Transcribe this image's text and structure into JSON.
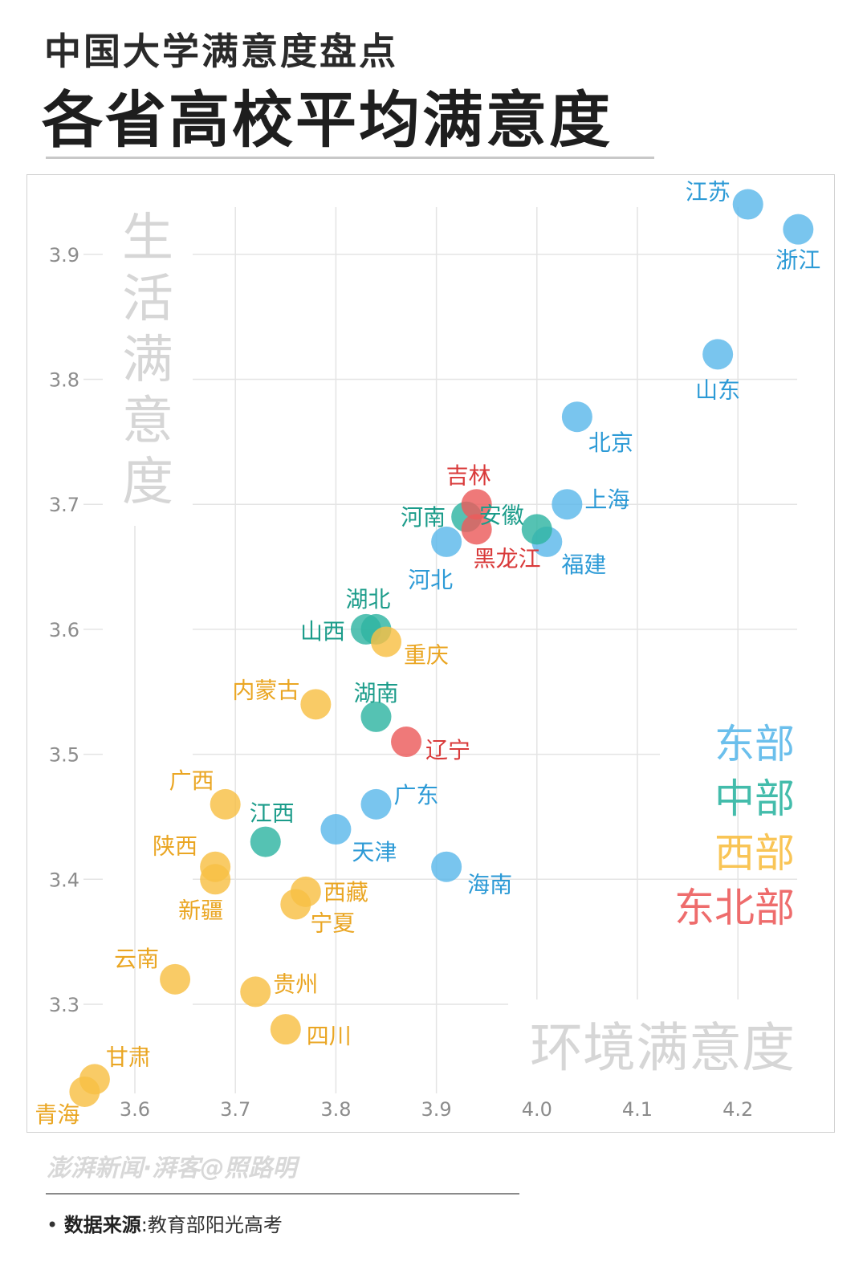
{
  "header": {
    "subtitle": "中国大学满意度盘点",
    "title": "各省高校平均满意度"
  },
  "footer": {
    "brand": "澎湃新闻·湃客@照路明",
    "source_label": "数据来源",
    "source_sep": ":",
    "source_value": "教育部阳光高考"
  },
  "colors": {
    "东部": "#5bb8ea",
    "中部": "#2fb5a2",
    "西部": "#f8bf44",
    "东北部": "#ec5c5c",
    "东部_text": "#2c9ad6",
    "中部_text": "#1b9c8a",
    "西部_text": "#eaa623",
    "东北部_text": "#d93a3a",
    "grid": "#e4e4e4",
    "tick": "#8c8c8c",
    "axis_title": "#d6d6d6"
  },
  "chart_data": {
    "type": "scatter",
    "title": "各省高校平均满意度",
    "xlabel": "环境满意度",
    "ylabel": "生活满意度",
    "xlim": [
      3.5,
      4.3
    ],
    "ylim": [
      3.2,
      3.95
    ],
    "xticks": [
      3.6,
      3.7,
      3.8,
      3.9,
      4.0,
      4.1,
      4.2
    ],
    "yticks": [
      3.3,
      3.4,
      3.5,
      3.6,
      3.7,
      3.8,
      3.9
    ],
    "grid": true,
    "legend_position": "right",
    "legend": [
      "东部",
      "中部",
      "西部",
      "东北部"
    ],
    "points": [
      {
        "name": "江苏",
        "region": "东部",
        "x": 4.21,
        "y": 3.94
      },
      {
        "name": "浙江",
        "region": "东部",
        "x": 4.26,
        "y": 3.92
      },
      {
        "name": "山东",
        "region": "东部",
        "x": 4.18,
        "y": 3.82
      },
      {
        "name": "北京",
        "region": "东部",
        "x": 4.04,
        "y": 3.77
      },
      {
        "name": "上海",
        "region": "东部",
        "x": 4.03,
        "y": 3.7
      },
      {
        "name": "福建",
        "region": "东部",
        "x": 4.01,
        "y": 3.67
      },
      {
        "name": "河北",
        "region": "东部",
        "x": 3.91,
        "y": 3.67
      },
      {
        "name": "广东",
        "region": "东部",
        "x": 3.84,
        "y": 3.46
      },
      {
        "name": "天津",
        "region": "东部",
        "x": 3.8,
        "y": 3.44
      },
      {
        "name": "海南",
        "region": "东部",
        "x": 3.91,
        "y": 3.41
      },
      {
        "name": "河南",
        "region": "中部",
        "x": 3.93,
        "y": 3.69
      },
      {
        "name": "安徽",
        "region": "中部",
        "x": 4.0,
        "y": 3.68
      },
      {
        "name": "湖北",
        "region": "中部",
        "x": 3.84,
        "y": 3.6
      },
      {
        "name": "山西",
        "region": "中部",
        "x": 3.83,
        "y": 3.6
      },
      {
        "name": "湖南",
        "region": "中部",
        "x": 3.84,
        "y": 3.53
      },
      {
        "name": "江西",
        "region": "中部",
        "x": 3.73,
        "y": 3.43
      },
      {
        "name": "重庆",
        "region": "西部",
        "x": 3.85,
        "y": 3.59
      },
      {
        "name": "内蒙古",
        "region": "西部",
        "x": 3.78,
        "y": 3.54
      },
      {
        "name": "广西",
        "region": "西部",
        "x": 3.69,
        "y": 3.46
      },
      {
        "name": "陕西",
        "region": "西部",
        "x": 3.68,
        "y": 3.41
      },
      {
        "name": "新疆",
        "region": "西部",
        "x": 3.68,
        "y": 3.4
      },
      {
        "name": "西藏",
        "region": "西部",
        "x": 3.77,
        "y": 3.39
      },
      {
        "name": "宁夏",
        "region": "西部",
        "x": 3.76,
        "y": 3.38
      },
      {
        "name": "云南",
        "region": "西部",
        "x": 3.64,
        "y": 3.32
      },
      {
        "name": "贵州",
        "region": "西部",
        "x": 3.72,
        "y": 3.31
      },
      {
        "name": "四川",
        "region": "西部",
        "x": 3.75,
        "y": 3.28
      },
      {
        "name": "甘肃",
        "region": "西部",
        "x": 3.56,
        "y": 3.24
      },
      {
        "name": "青海",
        "region": "西部",
        "x": 3.55,
        "y": 3.23
      },
      {
        "name": "吉林",
        "region": "东北部",
        "x": 3.94,
        "y": 3.7
      },
      {
        "name": "黑龙江",
        "region": "东北部",
        "x": 3.94,
        "y": 3.68
      },
      {
        "name": "辽宁",
        "region": "东北部",
        "x": 3.87,
        "y": 3.51
      }
    ]
  }
}
